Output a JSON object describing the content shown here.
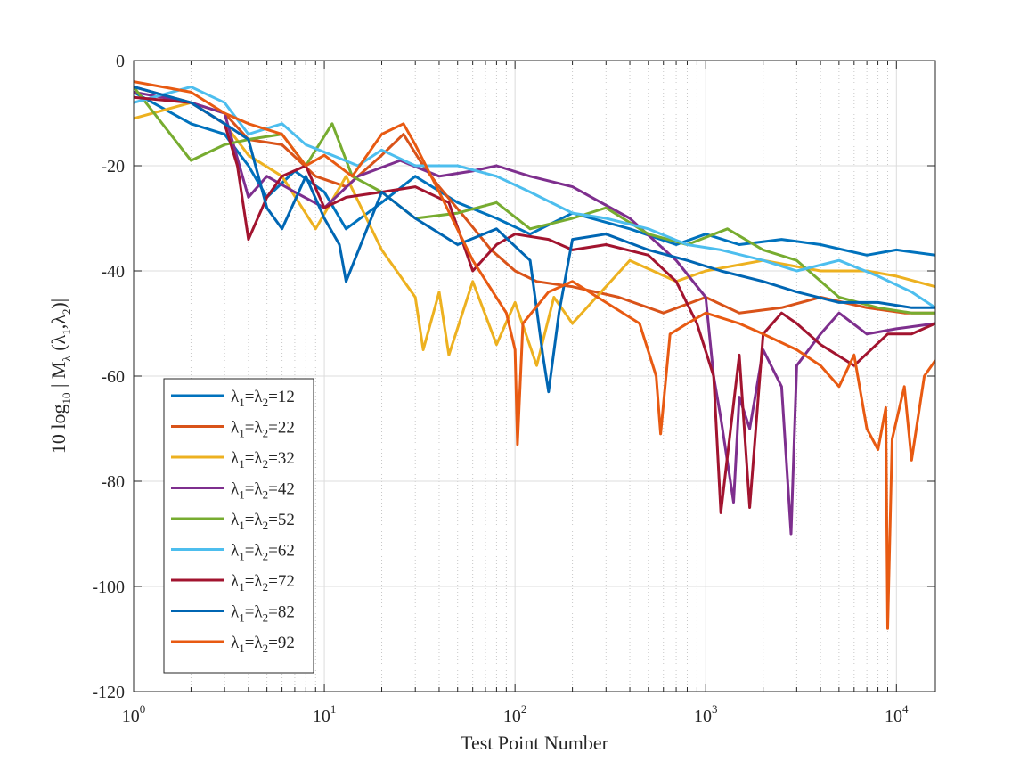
{
  "chart_data": {
    "type": "line",
    "title": "",
    "xlabel": "Test Point Number",
    "ylabel": {
      "prefix": "10 log",
      "log_sub": "10",
      "mid": " | M",
      "lambda_sub": "λ",
      "lparen": " (λ",
      "sub1": "1",
      "comma": ",λ",
      "sub2": "2",
      "rparen": ")|"
    },
    "xscale": "log",
    "xlim": [
      1,
      16000
    ],
    "ylim": [
      -120,
      0
    ],
    "grid": true,
    "legend_location": "lower-left",
    "x_ticks": [
      {
        "base": "10",
        "exp": "0",
        "value": 1
      },
      {
        "base": "10",
        "exp": "1",
        "value": 10
      },
      {
        "base": "10",
        "exp": "2",
        "value": 100
      },
      {
        "base": "10",
        "exp": "3",
        "value": 1000
      },
      {
        "base": "10",
        "exp": "4",
        "value": 10000
      }
    ],
    "y_ticks": [
      {
        "label": "0",
        "value": 0
      },
      {
        "label": "-20",
        "value": -20
      },
      {
        "label": "-40",
        "value": -40
      },
      {
        "label": "-60",
        "value": -60
      },
      {
        "label": "-80",
        "value": -80
      },
      {
        "label": "-100",
        "value": -100
      },
      {
        "label": "-120",
        "value": -120
      }
    ],
    "series": [
      {
        "name": "λ1=λ2=12",
        "label": {
          "l1": "λ",
          "s1": "1",
          "eq": "=λ",
          "s2": "2",
          "val": "=12"
        },
        "color": "#0072BD",
        "x": [
          1,
          2,
          3,
          4,
          5,
          7,
          10,
          13,
          20,
          30,
          50,
          80,
          120,
          200,
          400,
          700,
          1000,
          1500,
          2500,
          4000,
          7000,
          10000,
          16000
        ],
        "y": [
          -6,
          -12,
          -14,
          -20,
          -26,
          -21,
          -25,
          -32,
          -27,
          -22,
          -27,
          -30,
          -33,
          -29,
          -32,
          -35,
          -33,
          -35,
          -34,
          -35,
          -37,
          -36,
          -37
        ]
      },
      {
        "name": "λ1=λ2=22",
        "label": {
          "l1": "λ",
          "s1": "1",
          "eq": "=λ",
          "s2": "2",
          "val": "=22"
        },
        "color": "#D95319",
        "x": [
          1,
          2,
          3,
          4,
          6,
          9,
          13,
          20,
          26,
          33,
          40,
          55,
          75,
          100,
          130,
          200,
          350,
          600,
          1000,
          1500,
          2500,
          4000,
          7000,
          11000,
          16000
        ],
        "y": [
          -5,
          -8,
          -10,
          -15,
          -16,
          -22,
          -24,
          -18,
          -14,
          -20,
          -24,
          -30,
          -36,
          -40,
          -42,
          -43,
          -45,
          -48,
          -45,
          -48,
          -47,
          -45,
          -47,
          -48,
          -48
        ]
      },
      {
        "name": "λ1=λ2=32",
        "label": {
          "l1": "λ",
          "s1": "1",
          "eq": "=λ",
          "s2": "2",
          "val": "=32"
        },
        "color": "#EDB120",
        "x": [
          1,
          2,
          3,
          4,
          6,
          9,
          13,
          20,
          30,
          33,
          40,
          45,
          60,
          80,
          100,
          130,
          160,
          200,
          400,
          700,
          1000,
          2000,
          4000,
          7000,
          10000,
          16000
        ],
        "y": [
          -11,
          -8,
          -12,
          -18,
          -22,
          -32,
          -22,
          -36,
          -45,
          -55,
          -44,
          -56,
          -42,
          -54,
          -46,
          -58,
          -45,
          -50,
          -38,
          -42,
          -40,
          -38,
          -40,
          -40,
          -41,
          -43
        ]
      },
      {
        "name": "λ1=λ2=42",
        "label": {
          "l1": "λ",
          "s1": "1",
          "eq": "=λ",
          "s2": "2",
          "val": "=42"
        },
        "color": "#7E2F8E",
        "x": [
          1,
          2,
          3,
          4,
          5,
          7,
          10,
          15,
          25,
          40,
          60,
          80,
          120,
          200,
          400,
          700,
          1000,
          1100,
          1200,
          1400,
          1500,
          1700,
          2000,
          2500,
          2800,
          3000,
          4000,
          5000,
          7000,
          10000,
          16000
        ],
        "y": [
          -6,
          -8,
          -10,
          -26,
          -22,
          -25,
          -28,
          -22,
          -19,
          -22,
          -21,
          -20,
          -22,
          -24,
          -30,
          -38,
          -45,
          -60,
          -68,
          -84,
          -64,
          -70,
          -55,
          -62,
          -90,
          -58,
          -52,
          -48,
          -52,
          -51,
          -50
        ]
      },
      {
        "name": "λ1=λ2=52",
        "label": {
          "l1": "λ",
          "s1": "1",
          "eq": "=λ",
          "s2": "2",
          "val": "=52"
        },
        "color": "#77AC30",
        "x": [
          1,
          2,
          3,
          4,
          6,
          8,
          11,
          14,
          20,
          30,
          50,
          80,
          120,
          200,
          300,
          500,
          800,
          1300,
          2000,
          3000,
          5000,
          8000,
          12000,
          16000
        ],
        "y": [
          -5,
          -19,
          -16,
          -15,
          -14,
          -20,
          -12,
          -22,
          -25,
          -30,
          -29,
          -27,
          -32,
          -30,
          -28,
          -33,
          -35,
          -32,
          -36,
          -38,
          -45,
          -47,
          -48,
          -48
        ]
      },
      {
        "name": "λ1=λ2=62",
        "label": {
          "l1": "λ",
          "s1": "1",
          "eq": "=λ",
          "s2": "2",
          "val": "=62"
        },
        "color": "#4DBEEE",
        "x": [
          1,
          2,
          3,
          4,
          6,
          8,
          11,
          15,
          20,
          30,
          50,
          80,
          120,
          200,
          300,
          500,
          800,
          1200,
          2000,
          3000,
          5000,
          8000,
          12000,
          16000
        ],
        "y": [
          -8,
          -5,
          -8,
          -14,
          -12,
          -16,
          -18,
          -20,
          -17,
          -20,
          -20,
          -22,
          -25,
          -29,
          -30,
          -32,
          -35,
          -36,
          -38,
          -40,
          -38,
          -41,
          -44,
          -47
        ]
      },
      {
        "name": "λ1=λ2=72",
        "label": {
          "l1": "λ",
          "s1": "1",
          "eq": "=λ",
          "s2": "2",
          "val": "=72"
        },
        "color": "#A2142F",
        "x": [
          1,
          2,
          3,
          3.5,
          4,
          5,
          6,
          8,
          10,
          13,
          20,
          30,
          45,
          60,
          80,
          100,
          150,
          200,
          300,
          500,
          700,
          900,
          1100,
          1200,
          1500,
          1700,
          2000,
          2500,
          3000,
          4000,
          6000,
          9000,
          12000,
          16000
        ],
        "y": [
          -7,
          -8,
          -12,
          -20,
          -34,
          -26,
          -22,
          -20,
          -28,
          -26,
          -25,
          -24,
          -27,
          -40,
          -35,
          -33,
          -34,
          -36,
          -35,
          -37,
          -42,
          -50,
          -60,
          -86,
          -56,
          -85,
          -52,
          -48,
          -50,
          -54,
          -58,
          -52,
          -52,
          -50
        ]
      },
      {
        "name": "λ1=λ2=82",
        "label": {
          "l1": "λ",
          "s1": "1",
          "eq": "=λ",
          "s2": "2",
          "val": "=82"
        },
        "color": "#0066b3",
        "x": [
          1,
          2,
          3,
          4,
          5,
          6,
          8,
          10,
          12,
          13,
          20,
          30,
          50,
          80,
          120,
          140,
          150,
          170,
          200,
          300,
          500,
          800,
          1200,
          2000,
          3000,
          5000,
          8000,
          12000,
          16000
        ],
        "y": [
          -5,
          -8,
          -12,
          -15,
          -28,
          -32,
          -22,
          -30,
          -35,
          -42,
          -25,
          -30,
          -35,
          -32,
          -38,
          -56,
          -63,
          -48,
          -34,
          -33,
          -36,
          -38,
          -40,
          -42,
          -44,
          -46,
          -46,
          -47,
          -47
        ]
      },
      {
        "name": "λ1=λ2=92",
        "label": {
          "l1": "λ",
          "s1": "1",
          "eq": "=λ",
          "s2": "2",
          "val": "=92"
        },
        "color": "#E85A12",
        "x": [
          1,
          2,
          3,
          4,
          6,
          8,
          10,
          14,
          20,
          26,
          30,
          40,
          60,
          90,
          100,
          103,
          110,
          150,
          200,
          300,
          450,
          550,
          580,
          650,
          800,
          1000,
          1500,
          2000,
          3000,
          4000,
          5000,
          6000,
          7000,
          8000,
          8800,
          9000,
          9500,
          11000,
          12000,
          14000,
          16000
        ],
        "y": [
          -4,
          -6,
          -10,
          -12,
          -14,
          -20,
          -18,
          -22,
          -14,
          -12,
          -16,
          -25,
          -38,
          -48,
          -55,
          -73,
          -50,
          -44,
          -42,
          -46,
          -50,
          -60,
          -71,
          -52,
          -50,
          -48,
          -50,
          -52,
          -55,
          -58,
          -62,
          -56,
          -70,
          -74,
          -66,
          -108,
          -72,
          -62,
          -76,
          -60,
          -57
        ]
      }
    ]
  }
}
